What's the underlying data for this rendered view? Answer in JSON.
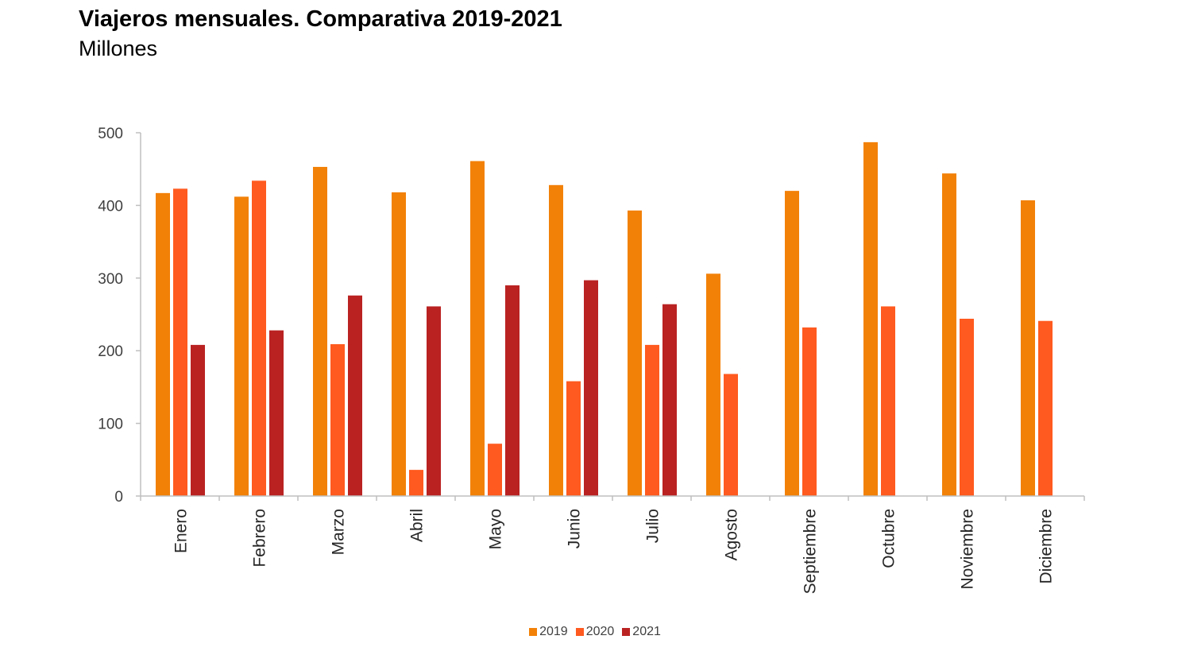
{
  "header": {
    "title": "Viajeros mensuales. Comparativa 2019-2021",
    "subtitle": "Millones"
  },
  "colors": {
    "s2019": "#F28108",
    "s2020": "#FF5A1F",
    "s2021": "#BA2222",
    "axis": "#BFBFBF"
  },
  "chart_data": {
    "type": "bar",
    "title": "Viajeros mensuales. Comparativa 2019-2021",
    "subtitle": "Millones",
    "categories": [
      "Enero",
      "Febrero",
      "Marzo",
      "Abril",
      "Mayo",
      "Junio",
      "Julio",
      "Agosto",
      "Septiembre",
      "Octubre",
      "Noviembre",
      "Diciembre"
    ],
    "series": [
      {
        "name": "2019",
        "color": "#F28108",
        "values": [
          417,
          412,
          453,
          418,
          461,
          428,
          393,
          306,
          420,
          487,
          444,
          407
        ]
      },
      {
        "name": "2020",
        "color": "#FF5A1F",
        "values": [
          423,
          434,
          209,
          36,
          72,
          158,
          208,
          168,
          232,
          261,
          244,
          241
        ]
      },
      {
        "name": "2021",
        "color": "#BA2222",
        "values": [
          208,
          228,
          276,
          261,
          290,
          297,
          264,
          null,
          null,
          null,
          null,
          null
        ]
      }
    ],
    "ylim": [
      0,
      500
    ],
    "yticks": [
      0,
      100,
      200,
      300,
      400,
      500
    ],
    "grid": false,
    "legend_position": "bottom"
  }
}
